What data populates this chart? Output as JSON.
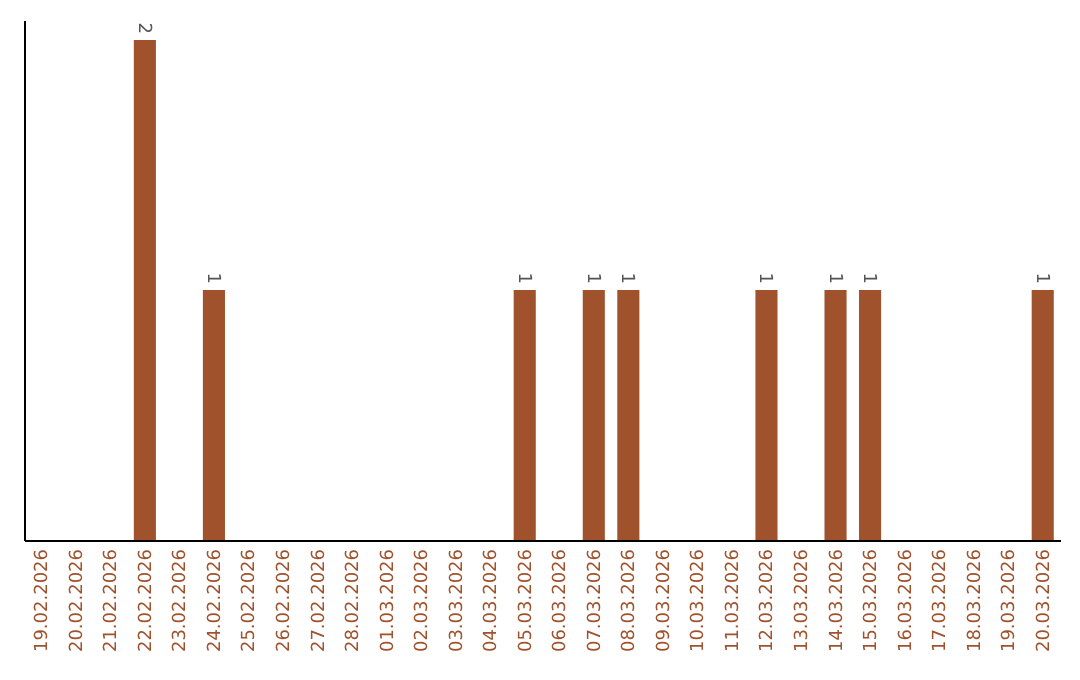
{
  "chart_data": {
    "type": "bar",
    "categories": [
      "19.02.2026",
      "20.02.2026",
      "21.02.2026",
      "22.02.2026",
      "23.02.2026",
      "24.02.2026",
      "25.02.2026",
      "26.02.2026",
      "27.02.2026",
      "28.02.2026",
      "01.03.2026",
      "02.03.2026",
      "03.03.2026",
      "04.03.2026",
      "05.03.2026",
      "06.03.2026",
      "07.03.2026",
      "08.03.2026",
      "09.03.2026",
      "10.03.2026",
      "11.03.2026",
      "12.03.2026",
      "13.03.2026",
      "14.03.2026",
      "15.03.2026",
      "16.03.2026",
      "17.03.2026",
      "18.03.2026",
      "19.03.2026",
      "20.03.2026"
    ],
    "values": [
      0,
      0,
      0,
      2,
      0,
      1,
      0,
      0,
      0,
      0,
      0,
      0,
      0,
      0,
      1,
      0,
      1,
      1,
      0,
      0,
      0,
      1,
      0,
      1,
      1,
      0,
      0,
      0,
      0,
      1
    ],
    "value_labels": [
      null,
      null,
      null,
      "2",
      null,
      "1",
      null,
      null,
      null,
      null,
      null,
      null,
      null,
      null,
      "1",
      null,
      "1",
      "1",
      null,
      null,
      null,
      "1",
      null,
      "1",
      "1",
      null,
      null,
      null,
      null,
      "1"
    ],
    "color": "#a0522d",
    "ylim": [
      0,
      2.08
    ],
    "tick_labels": "x",
    "grid": false
  }
}
